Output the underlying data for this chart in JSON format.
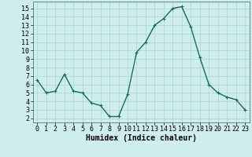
{
  "x": [
    0,
    1,
    2,
    3,
    4,
    5,
    6,
    7,
    8,
    9,
    10,
    11,
    12,
    13,
    14,
    15,
    16,
    17,
    18,
    19,
    20,
    21,
    22,
    23
  ],
  "y": [
    6.5,
    5.0,
    5.2,
    7.2,
    5.2,
    5.0,
    3.8,
    3.5,
    2.2,
    2.2,
    4.8,
    9.8,
    11.0,
    13.0,
    13.8,
    15.0,
    15.2,
    12.8,
    9.2,
    6.0,
    5.0,
    4.5,
    4.2,
    3.0
  ],
  "line_color": "#1a6b5a",
  "marker": "+",
  "marker_size": 3,
  "linewidth": 1.0,
  "xlabel": "Humidex (Indice chaleur)",
  "xlim": [
    -0.5,
    23.5
  ],
  "ylim": [
    1.5,
    15.8
  ],
  "xticks": [
    0,
    1,
    2,
    3,
    4,
    5,
    6,
    7,
    8,
    9,
    10,
    11,
    12,
    13,
    14,
    15,
    16,
    17,
    18,
    19,
    20,
    21,
    22,
    23
  ],
  "yticks": [
    2,
    3,
    4,
    5,
    6,
    7,
    8,
    9,
    10,
    11,
    12,
    13,
    14,
    15
  ],
  "bg_color": "#cdeeed",
  "grid_color": "#aad5d0",
  "xlabel_fontsize": 7,
  "tick_fontsize": 6
}
